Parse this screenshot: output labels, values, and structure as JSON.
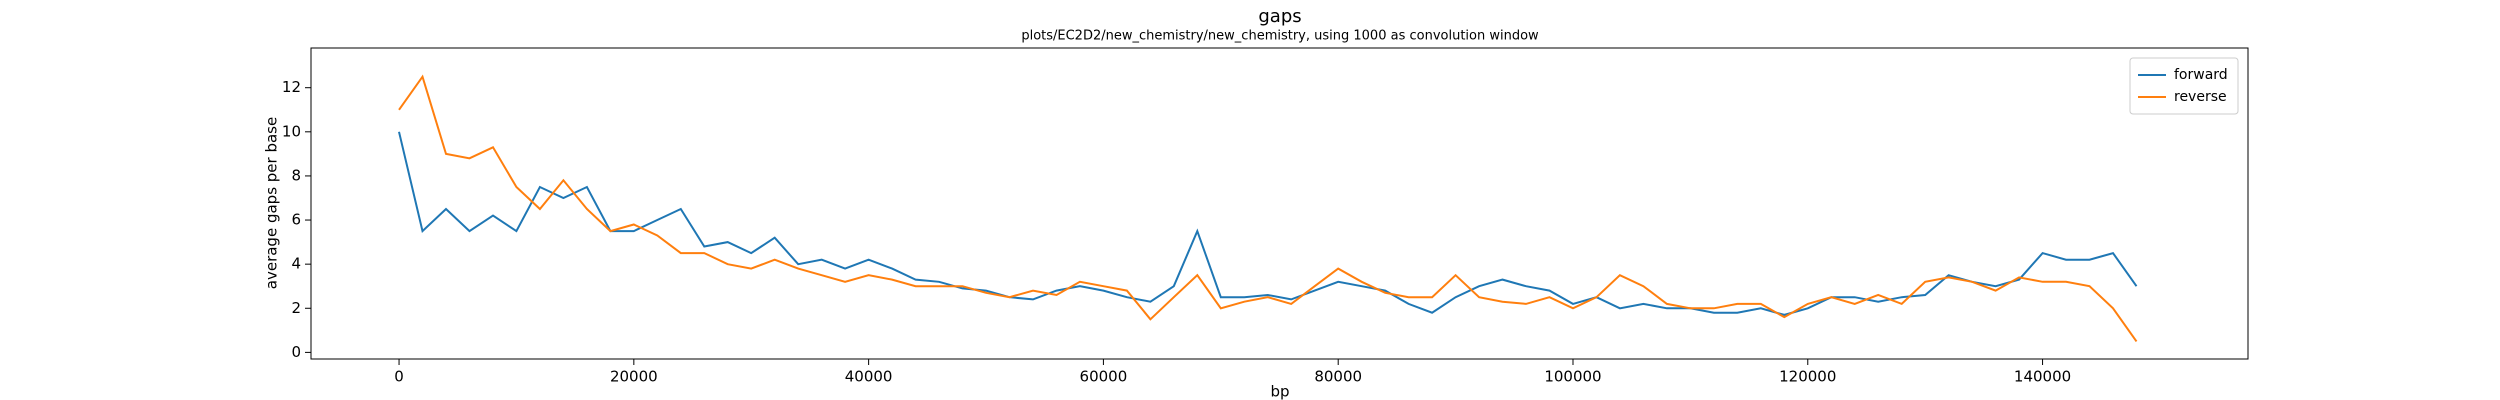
{
  "chart_data": {
    "type": "line",
    "title": "gaps",
    "subtitle": "plots/EC2D2/new_chemistry/new_chemistry, using 1000 as convolution window",
    "x_label": "bp",
    "y_label": "average gaps per base",
    "x": [
      0,
      2000,
      4000,
      6000,
      8000,
      10000,
      12000,
      14000,
      16000,
      18000,
      20000,
      22000,
      24000,
      26000,
      28000,
      30000,
      32000,
      34000,
      36000,
      38000,
      40000,
      42000,
      44000,
      46000,
      48000,
      50000,
      52000,
      54000,
      56000,
      58000,
      60000,
      62000,
      64000,
      66000,
      68000,
      70000,
      72000,
      74000,
      76000,
      78000,
      80000,
      82000,
      84000,
      86000,
      88000,
      90000,
      92000,
      94000,
      96000,
      98000,
      100000,
      102000,
      104000,
      106000,
      108000,
      110000,
      112000,
      114000,
      116000,
      118000,
      120000,
      122000,
      124000,
      126000,
      128000,
      130000,
      132000,
      134000,
      136000,
      138000,
      140000,
      142000,
      144000,
      146000,
      148000
    ],
    "series": [
      {
        "name": "forward",
        "color": "#1f77b4",
        "values": [
          10.0,
          5.5,
          6.5,
          5.5,
          6.2,
          5.5,
          7.5,
          7.0,
          7.5,
          5.5,
          5.5,
          6.0,
          6.5,
          4.8,
          5.0,
          4.5,
          5.2,
          4.0,
          4.2,
          3.8,
          4.2,
          3.8,
          3.3,
          3.2,
          2.9,
          2.8,
          2.5,
          2.4,
          2.8,
          3.0,
          2.8,
          2.5,
          2.3,
          3.0,
          5.5,
          2.5,
          2.5,
          2.6,
          2.4,
          2.8,
          3.2,
          3.0,
          2.8,
          2.2,
          1.8,
          2.5,
          3.0,
          3.3,
          3.0,
          2.8,
          2.2,
          2.5,
          2.0,
          2.2,
          2.0,
          2.0,
          1.8,
          1.8,
          2.0,
          1.7,
          2.0,
          2.5,
          2.5,
          2.3,
          2.5,
          2.6,
          3.5,
          3.2,
          3.0,
          3.3,
          4.5,
          4.2,
          4.2,
          4.5,
          3.0
        ]
      },
      {
        "name": "reverse",
        "color": "#ff7f0e",
        "values": [
          11.0,
          12.5,
          9.0,
          8.8,
          9.3,
          7.5,
          6.5,
          7.8,
          6.5,
          5.5,
          5.8,
          5.3,
          4.5,
          4.5,
          4.0,
          3.8,
          4.2,
          3.8,
          3.5,
          3.2,
          3.5,
          3.3,
          3.0,
          3.0,
          3.0,
          2.7,
          2.5,
          2.8,
          2.6,
          3.2,
          3.0,
          2.8,
          1.5,
          2.5,
          3.5,
          2.0,
          2.3,
          2.5,
          2.2,
          3.0,
          3.8,
          3.2,
          2.7,
          2.5,
          2.5,
          3.5,
          2.5,
          2.3,
          2.2,
          2.5,
          2.0,
          2.5,
          3.5,
          3.0,
          2.2,
          2.0,
          2.0,
          2.2,
          2.2,
          1.6,
          2.2,
          2.5,
          2.2,
          2.6,
          2.2,
          3.2,
          3.4,
          3.2,
          2.8,
          3.4,
          3.2,
          3.2,
          3.0,
          2.0,
          0.5
        ]
      }
    ],
    "xlim": [
      -7500,
      157500
    ],
    "ylim": [
      -0.3,
      13.8
    ],
    "xticks": [
      0,
      20000,
      40000,
      60000,
      80000,
      100000,
      120000,
      140000
    ],
    "yticks": [
      0,
      2,
      4,
      6,
      8,
      10,
      12
    ],
    "legend": "upper right",
    "grid": false
  }
}
